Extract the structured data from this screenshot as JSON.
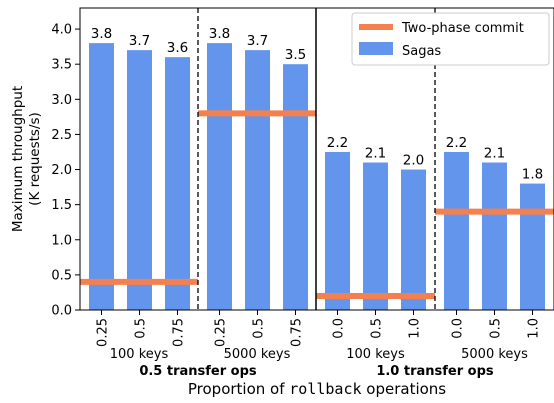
{
  "chart_data": {
    "type": "bar",
    "ylabel_lines": [
      "Maximum throughput",
      "(K requests/s)"
    ],
    "xlabel": {
      "prefix": "Proportion of ",
      "mono": "rollback",
      "suffix": " operations"
    },
    "ylim": [
      0,
      4.3
    ],
    "yticks": [
      "0.0",
      "0.5",
      "1.0",
      "1.5",
      "2.0",
      "2.5",
      "3.0",
      "3.5",
      "4.0"
    ],
    "colors": {
      "sagas": "#6495ed",
      "two_phase": "#f5804f"
    },
    "legend": {
      "position": "top-right",
      "entries": [
        "Two-phase commit",
        "Sagas"
      ]
    },
    "super_groups": [
      "0.5 transfer ops",
      "1.0 transfer ops"
    ],
    "groups": [
      {
        "name": "100 keys",
        "super": 0,
        "categories": [
          "0.25",
          "0.5",
          "0.75"
        ],
        "sagas": [
          3.8,
          3.7,
          3.6
        ],
        "labels": [
          "3.8",
          "3.7",
          "3.6"
        ],
        "two_phase": 0.4
      },
      {
        "name": "5000 keys",
        "super": 0,
        "categories": [
          "0.25",
          "0.5",
          "0.75"
        ],
        "sagas": [
          3.8,
          3.7,
          3.5
        ],
        "labels": [
          "3.8",
          "3.7",
          "3.5"
        ],
        "two_phase": 2.8
      },
      {
        "name": "100 keys",
        "super": 1,
        "categories": [
          "0.0",
          "0.5",
          "1.0"
        ],
        "sagas": [
          2.25,
          2.1,
          2.0
        ],
        "labels": [
          "2.2",
          "2.1",
          "2.0"
        ],
        "two_phase": 0.2
      },
      {
        "name": "5000 keys",
        "super": 1,
        "categories": [
          "0.0",
          "0.5",
          "1.0"
        ],
        "sagas": [
          2.25,
          2.1,
          1.8
        ],
        "labels": [
          "2.2",
          "2.1",
          "1.8"
        ],
        "two_phase": 1.4
      }
    ]
  }
}
